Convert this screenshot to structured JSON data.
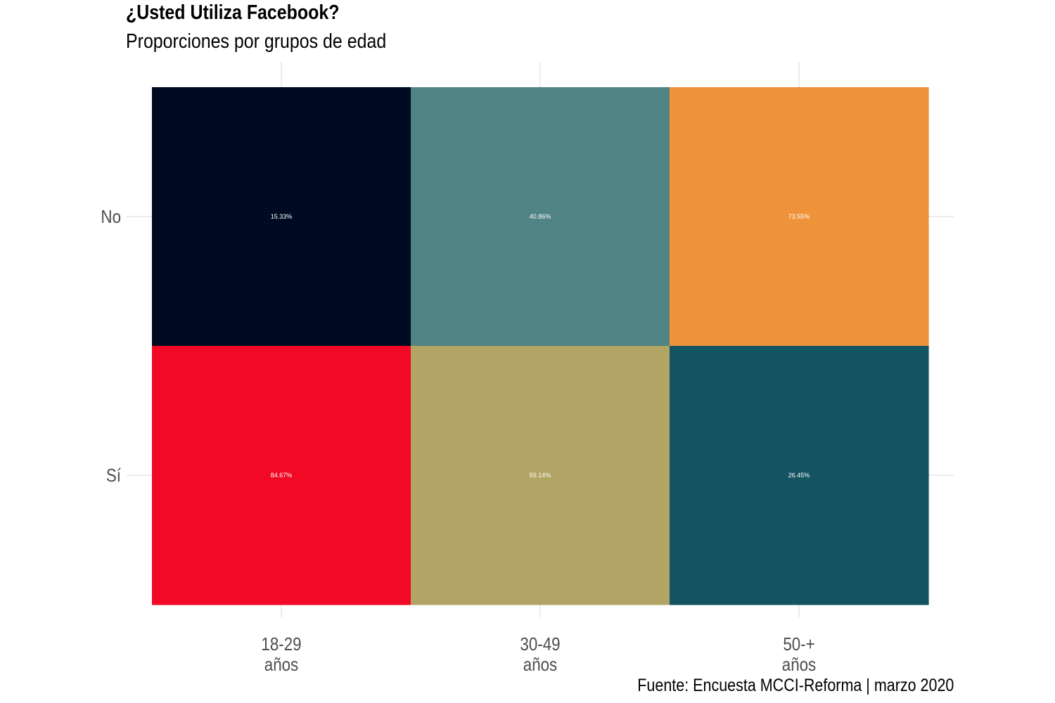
{
  "chart_data": {
    "type": "heatmap",
    "title": "¿Usted Utiliza Facebook?",
    "subtitle": "Proporciones por grupos de edad",
    "caption": "Fuente: Encuesta MCCI-Reforma | marzo 2020",
    "xlabel": "",
    "ylabel": "",
    "x_categories": [
      {
        "line1": "18-29",
        "line2": "años"
      },
      {
        "line1": "30-49",
        "line2": "años"
      },
      {
        "line1": "50-+",
        "line2": "años"
      }
    ],
    "y_categories": [
      "No",
      "Sí"
    ],
    "cells": [
      {
        "x": 0,
        "y": 0,
        "value": 15.33,
        "label": "15.33%",
        "color": "#000b23"
      },
      {
        "x": 1,
        "y": 0,
        "value": 40.86,
        "label": "40.86%",
        "color": "#508384"
      },
      {
        "x": 2,
        "y": 0,
        "value": 73.55,
        "label": "73.55%",
        "color": "#ef933a"
      },
      {
        "x": 0,
        "y": 1,
        "value": 84.67,
        "label": "84.67%",
        "color": "#f10926"
      },
      {
        "x": 1,
        "y": 1,
        "value": 59.14,
        "label": "59.14%",
        "color": "#b2a464"
      },
      {
        "x": 2,
        "y": 1,
        "value": 26.45,
        "label": "26.45%",
        "color": "#145361"
      }
    ],
    "grid": true,
    "legend": "none",
    "colors": {
      "grid": "#ebebeb",
      "axis_text": "#4d4d4d",
      "cell_label": "#ffffff"
    }
  }
}
